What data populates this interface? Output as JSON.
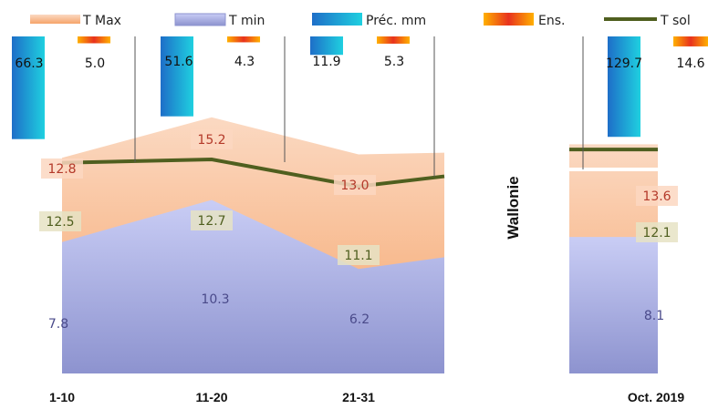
{
  "chart_data": {
    "type": "area",
    "region": "Wallonie",
    "categories": [
      "1-10",
      "11-20",
      "21-31"
    ],
    "summary_category": "Oct. 2019",
    "legend": [
      {
        "name": "T Max",
        "color": "#f7b07a"
      },
      {
        "name": "T min",
        "color": "#b9bdf0"
      },
      {
        "name": "Préc. mm",
        "color": "#1aa6e0"
      },
      {
        "name": "Ens.",
        "color": "#f26a1b"
      },
      {
        "name": "T sol",
        "color": "#4f5f1f"
      }
    ],
    "series": [
      {
        "name": "T Max",
        "values": [
          12.8,
          15.2,
          13.0
        ],
        "labels": [
          "12.8",
          "15.2",
          "13.0"
        ]
      },
      {
        "name": "T min",
        "values": [
          7.8,
          10.3,
          6.2
        ],
        "labels": [
          "7.8",
          "10.3",
          "6.2"
        ]
      },
      {
        "name": "T sol",
        "values": [
          12.5,
          12.7,
          11.1
        ],
        "labels": [
          "12.5",
          "12.7",
          "11.1"
        ]
      },
      {
        "name": "Préc. mm",
        "values": [
          66.3,
          51.6,
          11.9
        ],
        "labels": [
          "66.3",
          "51.6",
          "11.9"
        ]
      },
      {
        "name": "Ens.",
        "values": [
          5.0,
          4.3,
          5.3
        ],
        "labels": [
          "5.0",
          "4.3",
          "5.3"
        ]
      }
    ],
    "summary": {
      "tmax": 13.6,
      "tmax_label": "13.6",
      "tmin": 8.1,
      "tmin_label": "8.1",
      "tsol": 12.1,
      "tsol_label": "12.1",
      "prec": 129.7,
      "prec_label": "129.7",
      "ens": 14.6,
      "ens_label": "14.6"
    },
    "temperature_range": [
      0,
      20
    ],
    "colors": {
      "tmax_top": "#fbd9c2",
      "tmax_bottom": "#f6a46a",
      "tmin_top": "#c9cdf5",
      "tmin_bottom": "#8d93cf",
      "prec_a": "#1e6ec8",
      "prec_b": "#1fd0e0",
      "ens_a": "#ffb000",
      "ens_b": "#e8321e",
      "tsol": "#4f5f1f",
      "label_tmax": "#b43a2a",
      "label_tmin": "#4a4a8a",
      "label_tsol": "#4f5f1f"
    }
  }
}
